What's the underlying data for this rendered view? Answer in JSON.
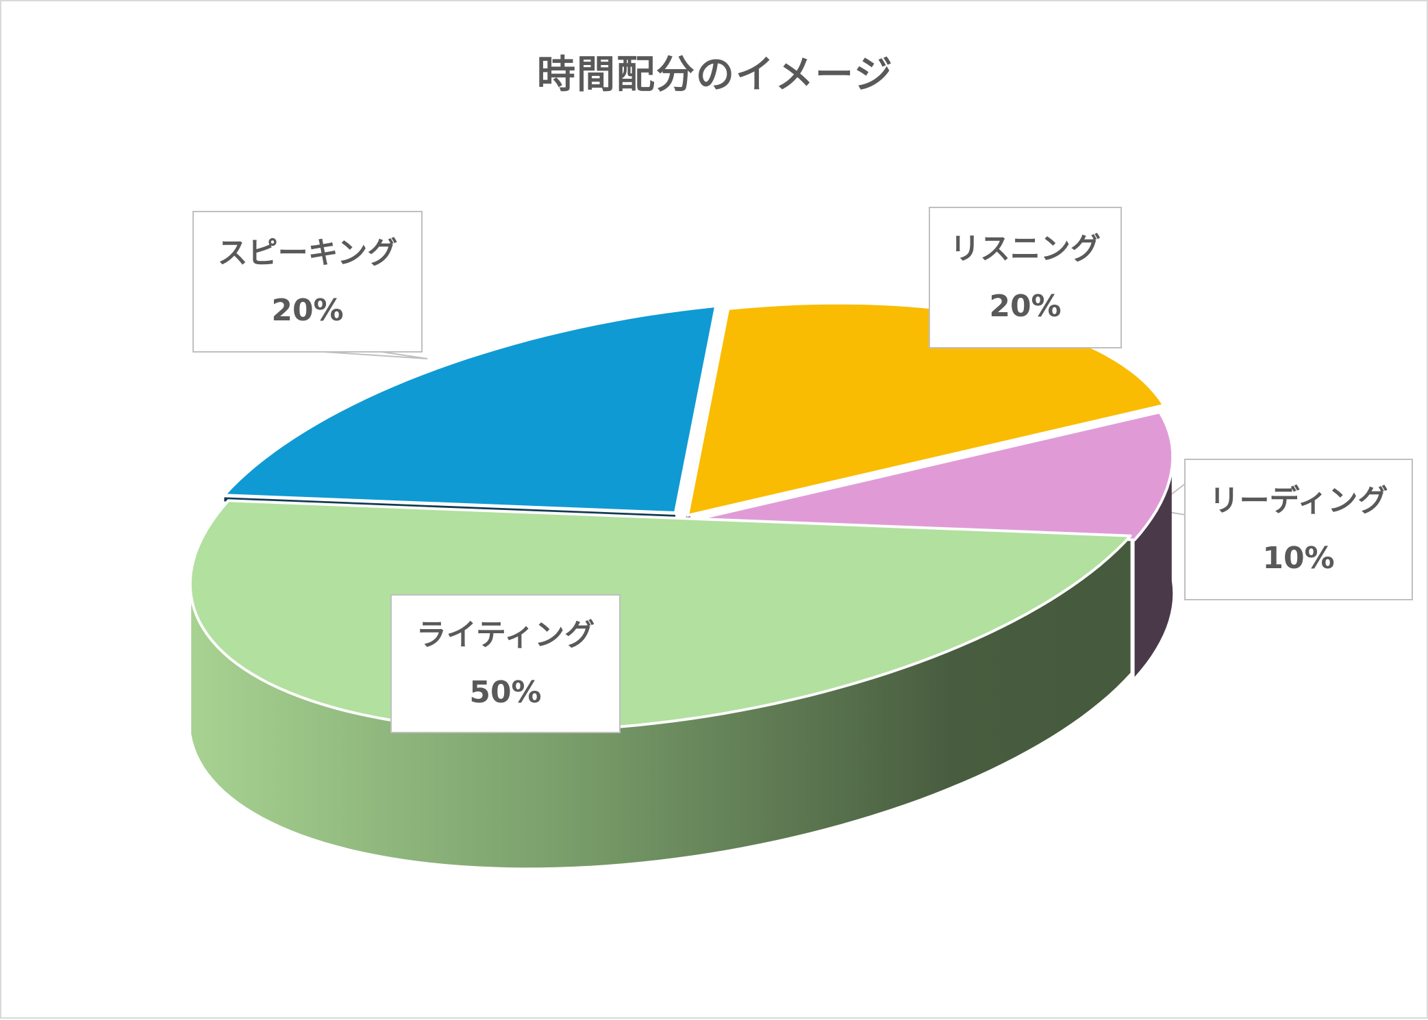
{
  "chart_data": {
    "type": "pie",
    "title": "時間配分のイメージ",
    "slices": [
      {
        "label": "リスニング",
        "value": 20,
        "value_label": "20%",
        "color": "#F9BC02"
      },
      {
        "label": "リーディング",
        "value": 10,
        "value_label": "10%",
        "color": "#E09BD7"
      },
      {
        "label": "ライティング",
        "value": 50,
        "value_label": "50%",
        "color": "#B2E09F"
      },
      {
        "label": "スピーキング",
        "value": 20,
        "value_label": "20%",
        "color": "#0F9AD3"
      }
    ],
    "legend": "none",
    "style": "3d"
  }
}
